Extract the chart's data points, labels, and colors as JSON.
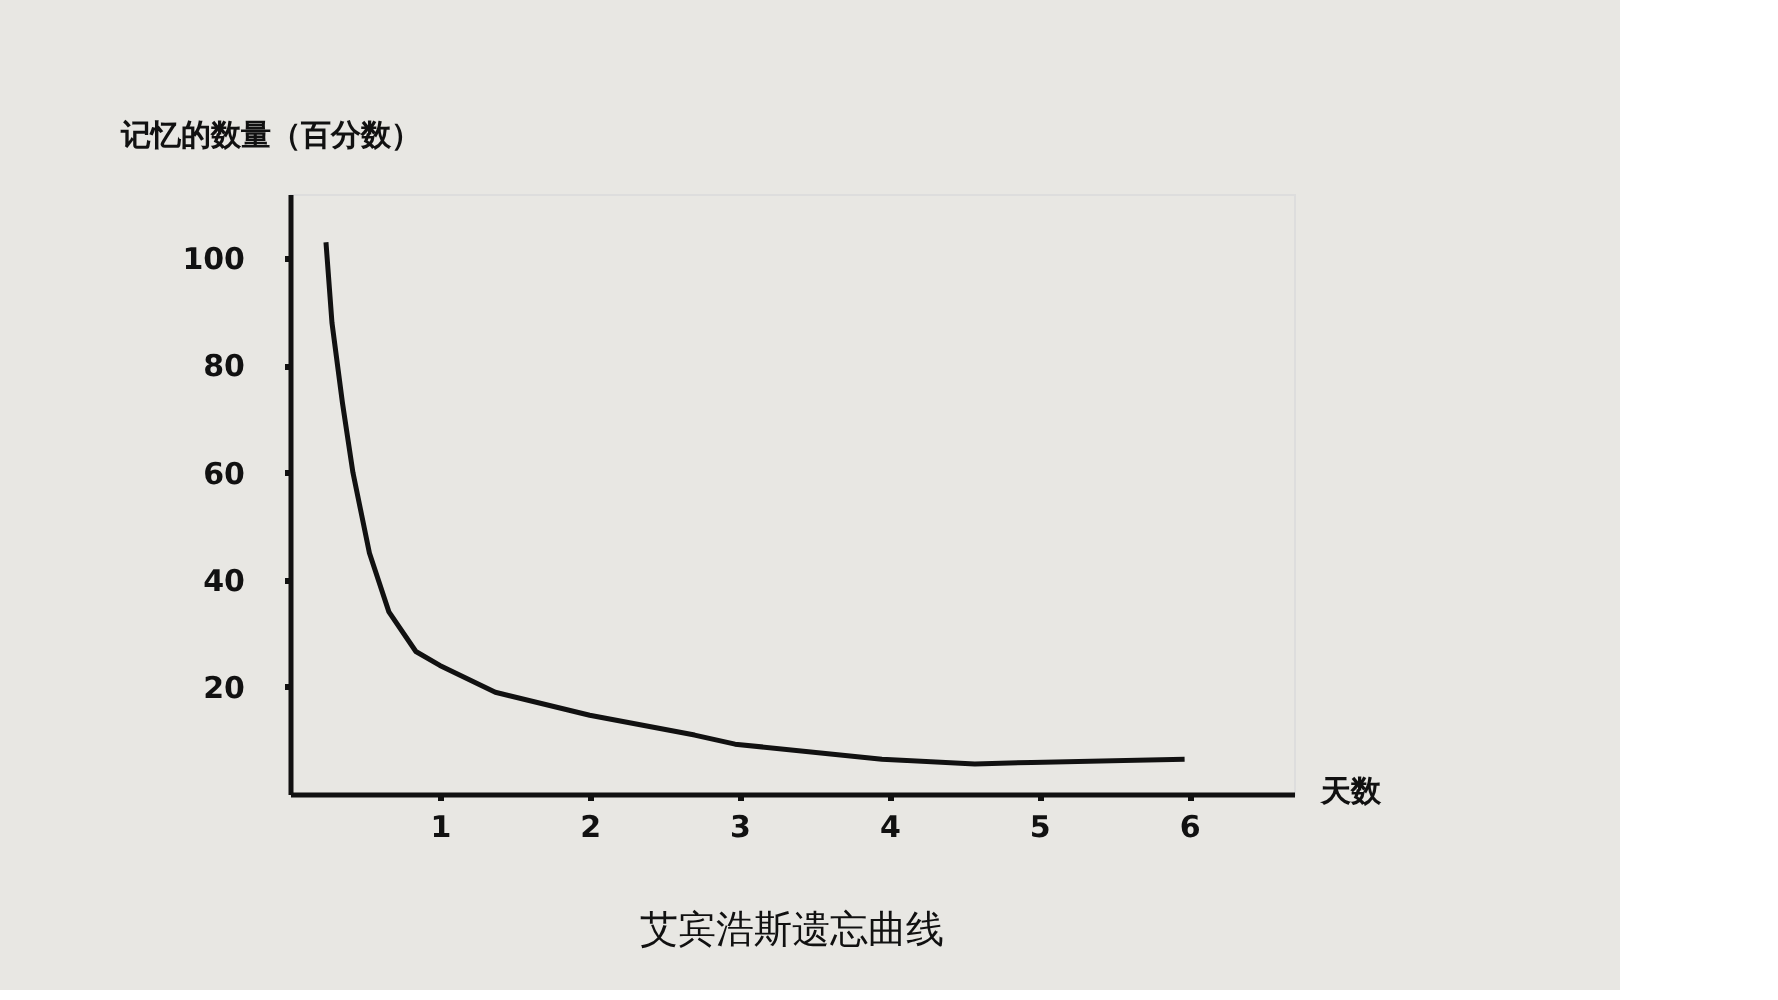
{
  "chart_data": {
    "type": "line",
    "title": "艾宾浩斯遗忘曲线",
    "xlabel": "天数",
    "ylabel": "记忆的数量（百分数）",
    "x": [
      0.24,
      0.28,
      0.35,
      0.42,
      0.53,
      0.66,
      0.84,
      1.0,
      1.37,
      2.0,
      2.7,
      2.97,
      3.95,
      4.57,
      4.95,
      5.97
    ],
    "series": [
      {
        "color": "#111111",
        "values": [
          103,
          88,
          73,
          60,
          45,
          34,
          26.6,
          24,
          19,
          14.7,
          11,
          9.3,
          6.5,
          5.6,
          5.9,
          6.5
        ]
      }
    ],
    "xlim": [
      0,
      6.7
    ],
    "ylim": [
      0,
      112
    ],
    "xticks": [
      1,
      2,
      3,
      4,
      5,
      6
    ],
    "yticks": [
      20,
      40,
      60,
      80,
      100
    ],
    "grid": false,
    "legend": false,
    "marker": "none",
    "line_style": "solid"
  }
}
